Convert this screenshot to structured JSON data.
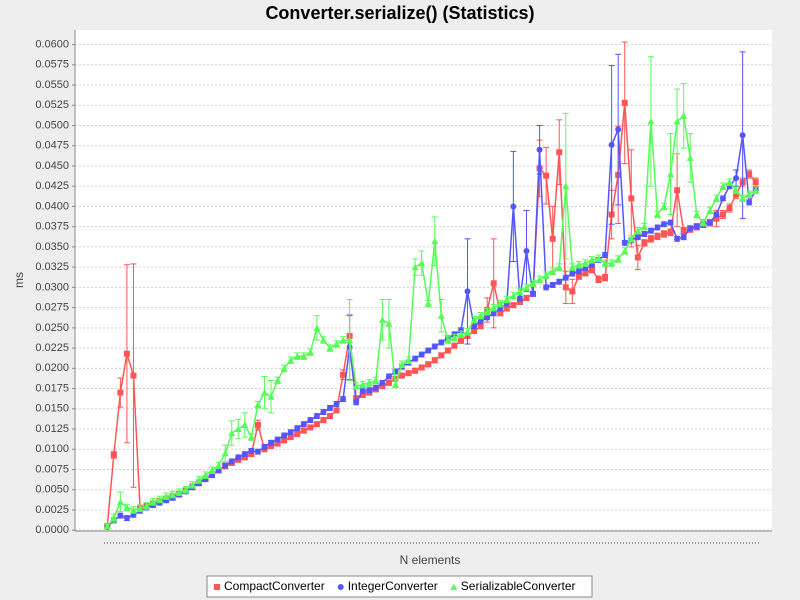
{
  "chart_data": {
    "type": "line",
    "title": "Converter.serialize() (Statistics)",
    "x_label": "N elements",
    "y_label": "ms",
    "categories": [
      null,
      null,
      null,
      null,
      null,
      null,
      null,
      null,
      null,
      null,
      null,
      null,
      null,
      null,
      null,
      null,
      null,
      null,
      null,
      null,
      null,
      null,
      null,
      null,
      null,
      null,
      null,
      null,
      null,
      null,
      null,
      null,
      null,
      null,
      null,
      null,
      null,
      null,
      null,
      null,
      null,
      null,
      null,
      null,
      null,
      null,
      null,
      null,
      null,
      null,
      null,
      null,
      null,
      null,
      null,
      null,
      null,
      null,
      null,
      null,
      null,
      null,
      null,
      null,
      null,
      null,
      null,
      null,
      null,
      null,
      null,
      null,
      null,
      null,
      null,
      null,
      null,
      null,
      null,
      null,
      null,
      null,
      null,
      null,
      null,
      null,
      null,
      null,
      null,
      null,
      null,
      null,
      null,
      null,
      null,
      null,
      null,
      null,
      null,
      null
    ],
    "ylim": [
      -0.0001,
      0.0618
    ],
    "yticks": [
      {
        "value": 0,
        "label": "0.0000"
      },
      {
        "value": 0.0025,
        "label": "0.0025"
      },
      {
        "value": 0.005,
        "label": "0.0050"
      },
      {
        "value": 0.0075,
        "label": "0.0075"
      },
      {
        "value": 0.01,
        "label": "0.0100"
      },
      {
        "value": 0.0125,
        "label": "0.0125"
      },
      {
        "value": 0.015,
        "label": "0.0150"
      },
      {
        "value": 0.0175,
        "label": "0.0175"
      },
      {
        "value": 0.02,
        "label": "0.0200"
      },
      {
        "value": 0.0225,
        "label": "0.0225"
      },
      {
        "value": 0.025,
        "label": "0.0250"
      },
      {
        "value": 0.0275,
        "label": "0.0275"
      },
      {
        "value": 0.03,
        "label": "0.0300"
      },
      {
        "value": 0.0325,
        "label": "0.0325"
      },
      {
        "value": 0.035,
        "label": "0.0350"
      },
      {
        "value": 0.0375,
        "label": "0.0375"
      },
      {
        "value": 0.04,
        "label": "0.0400"
      },
      {
        "value": 0.0425,
        "label": "0.0425"
      },
      {
        "value": 0.045,
        "label": "0.0450"
      },
      {
        "value": 0.0475,
        "label": "0.0475"
      },
      {
        "value": 0.05,
        "label": "0.0500"
      },
      {
        "value": 0.0525,
        "label": "0.0525"
      },
      {
        "value": 0.055,
        "label": "0.0550"
      },
      {
        "value": 0.0575,
        "label": "0.0575"
      },
      {
        "value": 0.06,
        "label": "0.0600"
      }
    ],
    "grid": true,
    "legend": "bottom",
    "series": [
      {
        "name": "CompactConverter",
        "color": "#ff5555",
        "marker": "square",
        "values": [
          0.0005,
          0.0093,
          0.017,
          0.0218,
          0.0191,
          0.0028,
          0.003,
          0.0033,
          0.0036,
          0.0039,
          0.0042,
          0.0045,
          0.0049,
          0.0054,
          0.0059,
          0.0064,
          0.0069,
          0.0074,
          0.0079,
          0.0083,
          0.0087,
          0.009,
          0.0094,
          0.013,
          0.01,
          0.0104,
          0.0107,
          0.0111,
          0.0115,
          0.0119,
          0.0123,
          0.0127,
          0.0131,
          0.0136,
          0.0141,
          0.0148,
          0.0192,
          0.024,
          0.0163,
          0.0167,
          0.017,
          0.0174,
          0.0178,
          0.0182,
          0.0187,
          0.0191,
          0.0194,
          0.0197,
          0.0201,
          0.0205,
          0.021,
          0.0216,
          0.0222,
          0.0228,
          0.0234,
          0.024,
          0.0246,
          0.0252,
          0.0272,
          0.0305,
          0.0268,
          0.0274,
          0.0278,
          0.0282,
          0.0287,
          0.0292,
          0.0447,
          0.0438,
          0.036,
          0.0467,
          0.03,
          0.0295,
          0.0314,
          0.0318,
          0.0322,
          0.031,
          0.0312,
          0.039,
          0.0439,
          0.0528,
          0.041,
          0.0337,
          0.0355,
          0.036,
          0.0363,
          0.0366,
          0.0368,
          0.042,
          0.037,
          0.0372,
          0.0375,
          0.0378,
          0.038,
          0.0385,
          0.039,
          0.0398,
          0.0415,
          0.043,
          0.044,
          0.043
        ],
        "errors": [
          0.0002,
          0.0004,
          0.0018,
          0.011,
          0.0138,
          0.0003,
          0.0003,
          0.0003,
          0.0003,
          0.0003,
          0.0003,
          0.0003,
          0.0003,
          0.0003,
          0.0003,
          0.0003,
          0.0003,
          0.0003,
          0.0003,
          0.0003,
          0.0003,
          0.0003,
          0.0003,
          0.0006,
          0.0003,
          0.0003,
          0.0003,
          0.0003,
          0.0003,
          0.0003,
          0.0003,
          0.0003,
          0.0003,
          0.0003,
          0.0003,
          0.0003,
          0.0006,
          0.0025,
          0.0003,
          0.0003,
          0.0003,
          0.0003,
          0.0003,
          0.0003,
          0.0003,
          0.0003,
          0.0003,
          0.0003,
          0.0003,
          0.0003,
          0.0003,
          0.0003,
          0.0003,
          0.0003,
          0.0003,
          0.0003,
          0.0003,
          0.0003,
          0.0015,
          0.0055,
          0.0003,
          0.0003,
          0.0003,
          0.0003,
          0.0003,
          0.0003,
          0.0035,
          0.0035,
          0.004,
          0.004,
          0.002,
          0.0015,
          0.0004,
          0.0004,
          0.0004,
          0.0004,
          0.0004,
          0.003,
          0.006,
          0.0075,
          0.006,
          0.0015,
          0.0004,
          0.0004,
          0.0004,
          0.0004,
          0.0004,
          0.0045,
          0.0004,
          0.0004,
          0.0004,
          0.0004,
          0.0004,
          0.001,
          0.0005,
          0.0005,
          0.0005,
          0.0005,
          0.0005,
          0.0005
        ]
      },
      {
        "name": "IntegerConverter",
        "color": "#5555ff",
        "marker": "circle",
        "values": [
          0.0004,
          0.0012,
          0.0018,
          0.0015,
          0.0019,
          0.0024,
          0.0028,
          0.0031,
          0.0034,
          0.0037,
          0.004,
          0.0044,
          0.0048,
          0.0053,
          0.0058,
          0.0063,
          0.0068,
          0.0074,
          0.008,
          0.0085,
          0.009,
          0.0094,
          0.0098,
          0.0097,
          0.0103,
          0.0108,
          0.0112,
          0.0117,
          0.0121,
          0.0126,
          0.0131,
          0.0136,
          0.0141,
          0.0146,
          0.0151,
          0.0156,
          0.0162,
          0.0226,
          0.0158,
          0.0172,
          0.0173,
          0.0176,
          0.0182,
          0.019,
          0.0196,
          0.0202,
          0.0207,
          0.0212,
          0.0217,
          0.0222,
          0.0227,
          0.0232,
          0.0237,
          0.0242,
          0.0247,
          0.0295,
          0.0252,
          0.0258,
          0.0263,
          0.0268,
          0.0274,
          0.028,
          0.04,
          0.0286,
          0.0345,
          0.0292,
          0.047,
          0.03,
          0.0303,
          0.0307,
          0.0312,
          0.0317,
          0.032,
          0.0324,
          0.0328,
          0.0334,
          0.034,
          0.0476,
          0.0495,
          0.0355,
          0.0358,
          0.0362,
          0.0366,
          0.037,
          0.0374,
          0.0378,
          0.038,
          0.036,
          0.0362,
          0.0373,
          0.0375,
          0.0377,
          0.038,
          0.039,
          0.041,
          0.0425,
          0.0435,
          0.0488,
          0.0405,
          0.042
        ],
        "errors": [
          0.0002,
          0.0003,
          0.0003,
          0.0003,
          0.0003,
          0.0003,
          0.0003,
          0.0003,
          0.0003,
          0.0003,
          0.0003,
          0.0003,
          0.0003,
          0.0003,
          0.0003,
          0.0003,
          0.0003,
          0.0003,
          0.0003,
          0.0003,
          0.0003,
          0.0003,
          0.0003,
          0.0003,
          0.0003,
          0.0003,
          0.0003,
          0.0003,
          0.0003,
          0.0003,
          0.0003,
          0.0003,
          0.0003,
          0.0003,
          0.0003,
          0.0003,
          0.0003,
          0.004,
          0.0003,
          0.0003,
          0.0003,
          0.0003,
          0.0003,
          0.0003,
          0.0003,
          0.0003,
          0.0003,
          0.0003,
          0.0003,
          0.0003,
          0.0003,
          0.0003,
          0.0003,
          0.0003,
          0.0003,
          0.0065,
          0.0003,
          0.0003,
          0.0003,
          0.0003,
          0.0003,
          0.0003,
          0.0068,
          0.0003,
          0.005,
          0.0003,
          0.003,
          0.0003,
          0.0003,
          0.0003,
          0.0003,
          0.0003,
          0.0003,
          0.0003,
          0.0003,
          0.0003,
          0.0003,
          0.0098,
          0.0093,
          0.0003,
          0.0003,
          0.0003,
          0.0003,
          0.0003,
          0.0003,
          0.0003,
          0.0003,
          0.0003,
          0.0003,
          0.0003,
          0.0003,
          0.0003,
          0.0003,
          0.0003,
          0.0003,
          0.0003,
          0.001,
          0.0103,
          0.0003,
          0.0003
        ]
      },
      {
        "name": "SerializableConverter",
        "color": "#55ff55",
        "marker": "triangle",
        "values": [
          0.0005,
          0.0015,
          0.0035,
          0.0028,
          0.0025,
          0.0027,
          0.003,
          0.0035,
          0.0038,
          0.0042,
          0.0044,
          0.0047,
          0.005,
          0.0056,
          0.0062,
          0.0068,
          0.0074,
          0.008,
          0.0095,
          0.012,
          0.0125,
          0.013,
          0.0115,
          0.0155,
          0.017,
          0.0165,
          0.0185,
          0.02,
          0.021,
          0.0215,
          0.0215,
          0.022,
          0.025,
          0.0235,
          0.0225,
          0.023,
          0.0235,
          0.0235,
          0.0178,
          0.018,
          0.0182,
          0.0185,
          0.026,
          0.0255,
          0.018,
          0.0205,
          0.021,
          0.0325,
          0.033,
          0.028,
          0.0357,
          0.0265,
          0.0235,
          0.0238,
          0.0242,
          0.0245,
          0.026,
          0.0265,
          0.027,
          0.0275,
          0.028,
          0.0285,
          0.029,
          0.0295,
          0.03,
          0.0305,
          0.031,
          0.0315,
          0.032,
          0.0325,
          0.0425,
          0.0325,
          0.0328,
          0.033,
          0.0334,
          0.0336,
          0.033,
          0.033,
          0.0335,
          0.0345,
          0.036,
          0.037,
          0.0375,
          0.0505,
          0.039,
          0.04,
          0.044,
          0.0505,
          0.0512,
          0.046,
          0.039,
          0.038,
          0.0395,
          0.041,
          0.0425,
          0.043,
          0.042,
          0.041,
          0.0415,
          0.042
        ],
        "errors": [
          0.0002,
          0.0005,
          0.0012,
          0.0004,
          0.0004,
          0.0004,
          0.0004,
          0.0004,
          0.0004,
          0.0004,
          0.0004,
          0.0004,
          0.0004,
          0.0004,
          0.0004,
          0.0004,
          0.0004,
          0.0004,
          0.001,
          0.0015,
          0.0012,
          0.0015,
          0.0004,
          0.0004,
          0.002,
          0.002,
          0.0004,
          0.0004,
          0.0004,
          0.0004,
          0.0004,
          0.0004,
          0.0015,
          0.0004,
          0.0004,
          0.0004,
          0.0004,
          0.005,
          0.0004,
          0.0004,
          0.0004,
          0.0004,
          0.0025,
          0.003,
          0.0004,
          0.0004,
          0.0004,
          0.001,
          0.0015,
          0.0004,
          0.003,
          0.002,
          0.0004,
          0.0004,
          0.0004,
          0.0004,
          0.0004,
          0.0004,
          0.0004,
          0.0004,
          0.0004,
          0.0004,
          0.0004,
          0.0004,
          0.0004,
          0.0004,
          0.0004,
          0.0004,
          0.0004,
          0.0004,
          0.009,
          0.0004,
          0.0004,
          0.0004,
          0.0004,
          0.0004,
          0.0004,
          0.0004,
          0.0004,
          0.0004,
          0.0004,
          0.0004,
          0.0004,
          0.008,
          0.0004,
          0.0004,
          0.005,
          0.004,
          0.004,
          0.003,
          0.0004,
          0.0004,
          0.0004,
          0.0004,
          0.0004,
          0.0004,
          0.0004,
          0.0004,
          0.0004,
          0.0004
        ]
      }
    ]
  }
}
